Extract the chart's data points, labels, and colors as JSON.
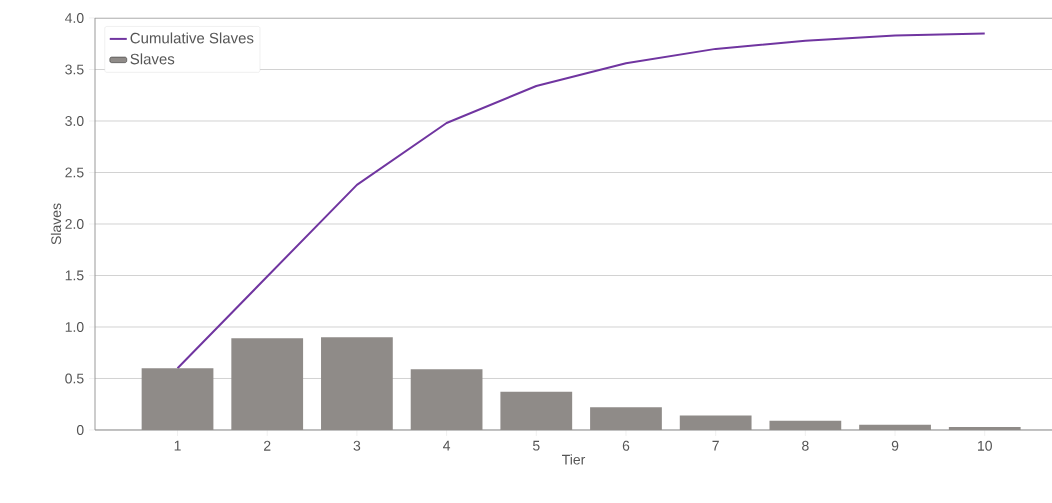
{
  "chart_data": {
    "type": "bar",
    "xlabel": "Tier",
    "ylabel": "Slaves",
    "categories": [
      "1",
      "2",
      "3",
      "4",
      "5",
      "6",
      "7",
      "8",
      "9",
      "10"
    ],
    "series": [
      {
        "name": "Cumulative Slaves",
        "type": "line",
        "color": "#7035a0",
        "values": [
          0.6,
          1.49,
          2.38,
          2.98,
          3.34,
          3.56,
          3.7,
          3.78,
          3.83,
          3.85
        ]
      },
      {
        "name": "Slaves",
        "color": "#8f8b88",
        "values": [
          0.6,
          0.89,
          0.9,
          0.59,
          0.37,
          0.22,
          0.14,
          0.09,
          0.05,
          0.03
        ]
      }
    ],
    "ylim": [
      0,
      4.0
    ],
    "yticks": [
      0,
      {
        "value": 0.5,
        "label": "0.5"
      },
      {
        "value": 1.0,
        "label": "1.0"
      },
      {
        "value": 1.5,
        "label": "1.5"
      },
      {
        "value": 2.0,
        "label": "2.0"
      },
      {
        "value": 2.5,
        "label": "2.5"
      },
      {
        "value": 3.0,
        "label": "3.0"
      },
      {
        "value": 3.5,
        "label": "3.5"
      },
      {
        "value": 4.0,
        "label": "4.0"
      }
    ],
    "grid": "y",
    "legend": "top left"
  }
}
